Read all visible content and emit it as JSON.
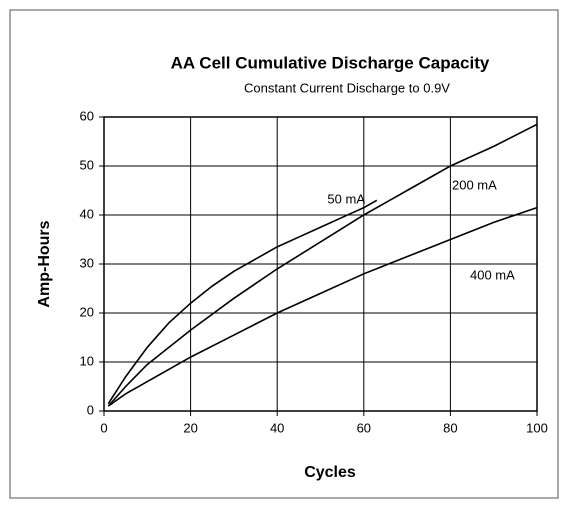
{
  "chart_data": {
    "type": "line",
    "title": "AA Cell Cumulative Discharge Capacity",
    "subtitle": "Constant Current Discharge to 0.9V",
    "x_label": "Cycles",
    "y_label": "Amp-Hours",
    "xlim": [
      0,
      100
    ],
    "xticks": [
      0,
      20,
      40,
      60,
      80,
      100
    ],
    "ylim": [
      0,
      60
    ],
    "yticks": [
      0,
      10,
      20,
      30,
      40,
      50,
      60
    ],
    "grid": true,
    "series": [
      {
        "name": "50 mA",
        "color": "#000000",
        "x": [
          1,
          5,
          10,
          15,
          20,
          25,
          30,
          35,
          40,
          45,
          50,
          55,
          60,
          63
        ],
        "values": [
          1.5,
          7,
          13,
          18,
          22,
          25.5,
          28.5,
          31,
          33.5,
          35.5,
          37.5,
          39.5,
          41.5,
          43
        ]
      },
      {
        "name": "200 mA",
        "color": "#000000",
        "x": [
          1,
          5,
          10,
          20,
          30,
          40,
          50,
          60,
          70,
          80,
          90,
          100
        ],
        "values": [
          1,
          5,
          9.5,
          16.5,
          23,
          29,
          34.5,
          40,
          45,
          50,
          54,
          58.5
        ]
      },
      {
        "name": "400 mA",
        "color": "#000000",
        "x": [
          1,
          5,
          10,
          20,
          30,
          40,
          50,
          60,
          70,
          80,
          90,
          100
        ],
        "values": [
          1,
          3.5,
          6,
          11,
          15.5,
          20,
          24,
          28,
          31.5,
          35,
          38.5,
          41.5
        ]
      }
    ]
  }
}
